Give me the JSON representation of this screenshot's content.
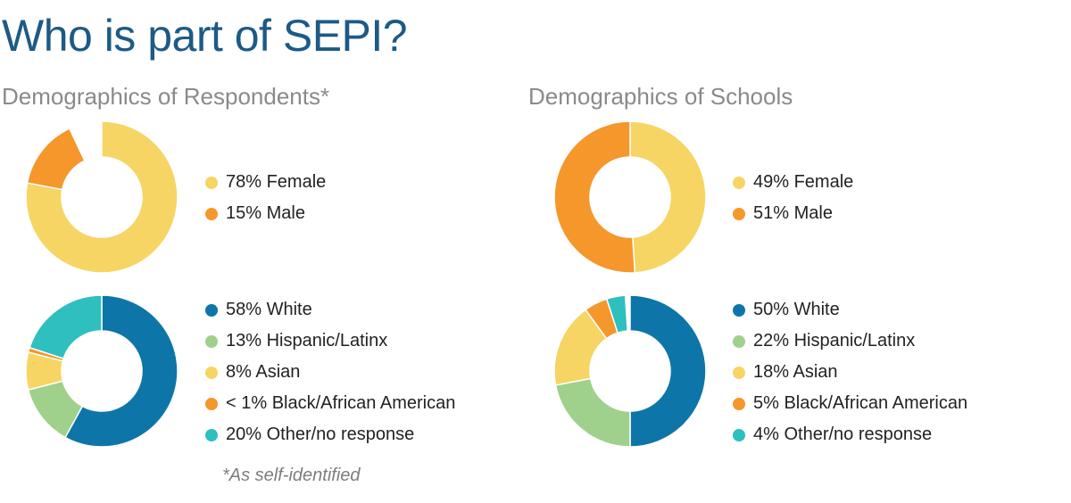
{
  "title": "Who is part of SEPI?",
  "footnote": "*As self-identified",
  "colors": {
    "female": "#f6d564",
    "male": "#f5972b",
    "white": "#0e75a8",
    "hispanic_latinx": "#9fd18c",
    "asian": "#f6d564",
    "black_african_american": "#f5972b",
    "other_no_response": "#2fbfbf"
  },
  "chart_data": [
    {
      "type": "pie",
      "variant": "donut",
      "group": "Demographics of Respondents*",
      "slices": [
        {
          "label": "78% Female",
          "value": 78,
          "color": "#f6d564"
        },
        {
          "label": "15% Male",
          "value": 15,
          "color": "#f5972b"
        }
      ],
      "total": 100,
      "legend": "right"
    },
    {
      "type": "pie",
      "variant": "donut",
      "group": "Demographics of Schools",
      "slices": [
        {
          "label": "49% Female",
          "value": 49,
          "color": "#f6d564"
        },
        {
          "label": "51% Male",
          "value": 51,
          "color": "#f5972b"
        }
      ],
      "total": 100,
      "legend": "right"
    },
    {
      "type": "pie",
      "variant": "donut",
      "group": "Demographics of Respondents*",
      "slices": [
        {
          "label": "58% White",
          "value": 58,
          "color": "#0e75a8"
        },
        {
          "label": "13% Hispanic/Latinx",
          "value": 13,
          "color": "#9fd18c"
        },
        {
          "label": "8% Asian",
          "value": 8,
          "color": "#f6d564"
        },
        {
          "label": "< 1% Black/African American",
          "value": 1,
          "color": "#f5972b"
        },
        {
          "label": "20% Other/no response",
          "value": 20,
          "color": "#2fbfbf"
        }
      ],
      "total": 100,
      "legend": "right"
    },
    {
      "type": "pie",
      "variant": "donut",
      "group": "Demographics of Schools",
      "slices": [
        {
          "label": "50% White",
          "value": 50,
          "color": "#0e75a8"
        },
        {
          "label": "22% Hispanic/Latinx",
          "value": 22,
          "color": "#9fd18c"
        },
        {
          "label": "18% Asian",
          "value": 18,
          "color": "#f6d564"
        },
        {
          "label": "5% Black/African American",
          "value": 5,
          "color": "#f5972b"
        },
        {
          "label": "4% Other/no response",
          "value": 4,
          "color": "#2fbfbf"
        }
      ],
      "total": 100,
      "legend": "right"
    }
  ]
}
